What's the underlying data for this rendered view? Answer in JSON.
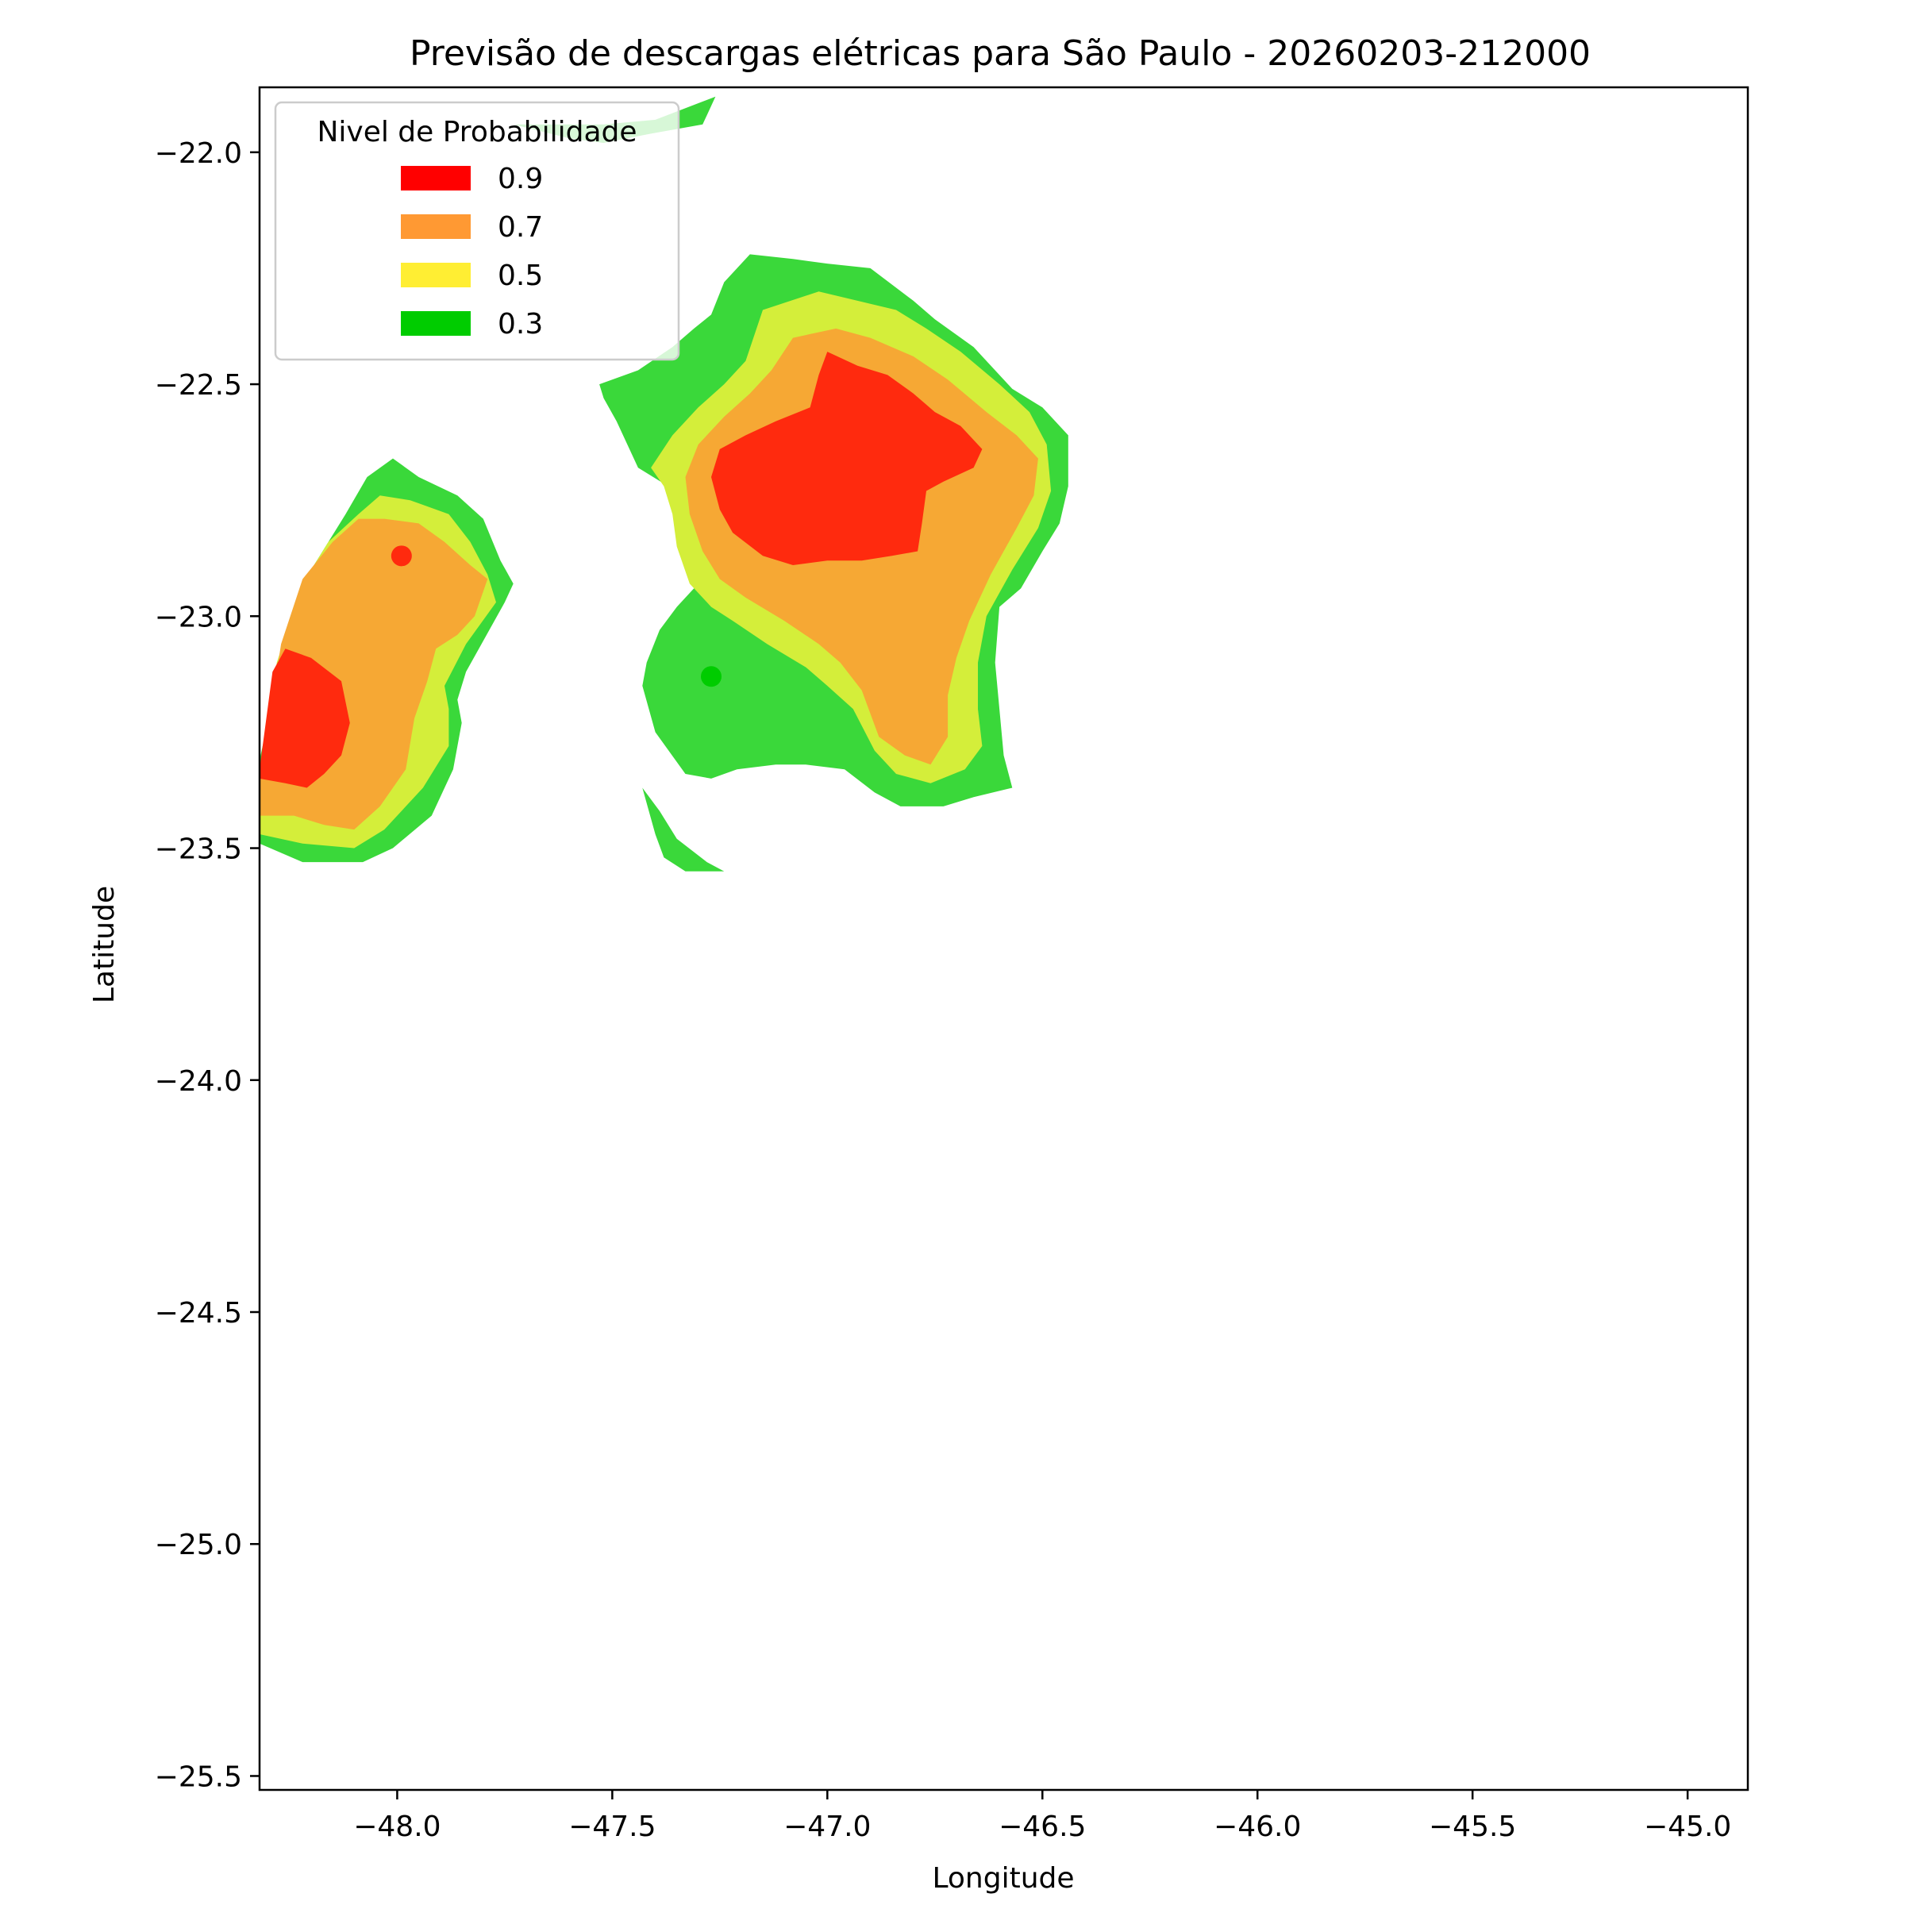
{
  "chart_data": {
    "type": "contour",
    "title": "Previsão de descargas elétricas para São Paulo - 20260203-212000",
    "xlabel": "Longitude",
    "ylabel": "Latitude",
    "xlim": [
      -48.32,
      -44.86
    ],
    "ylim": [
      -25.53,
      -21.86
    ],
    "x_ticks": [
      -48.0,
      -47.5,
      -47.0,
      -46.5,
      -46.0,
      -45.5,
      -45.0
    ],
    "x_tick_labels": [
      "−48.0",
      "−47.5",
      "−47.0",
      "−46.5",
      "−46.0",
      "−45.5",
      "−45.0"
    ],
    "y_ticks": [
      -22.0,
      -22.5,
      -23.0,
      -23.5,
      -24.0,
      -24.5,
      -25.0,
      -25.5
    ],
    "y_tick_labels": [
      "−22.0",
      "−22.5",
      "−23.0",
      "−23.5",
      "−24.0",
      "−24.5",
      "−25.0",
      "−25.5"
    ],
    "legend": {
      "title": "Nivel de Probabilidade",
      "placement": "upper-left",
      "entries": [
        {
          "label": "0.9",
          "color": "#ff0000"
        },
        {
          "label": "0.7",
          "color": "#ff9933"
        },
        {
          "label": "0.5",
          "color": "#ffee33"
        },
        {
          "label": "0.3",
          "color": "#00cc00"
        }
      ]
    },
    "level_fill_colors": {
      "0.3": "#3ad83a",
      "0.5": "#d4ee3a",
      "0.7": "#f6a834",
      "0.9": "#ff2a0e"
    },
    "regions": [
      {
        "level": 0.3,
        "polygon": [
          [
            -47.73,
            -21.94
          ],
          [
            -47.52,
            -21.94
          ],
          [
            -47.4,
            -21.93
          ],
          [
            -47.26,
            -21.88
          ],
          [
            -47.29,
            -21.94
          ],
          [
            -47.41,
            -21.96
          ],
          [
            -47.52,
            -21.98
          ],
          [
            -47.6,
            -21.97
          ]
        ]
      },
      {
        "level": 0.3,
        "polygon": [
          [
            -48.32,
            -23.31
          ],
          [
            -48.27,
            -23.1
          ],
          [
            -48.2,
            -22.9
          ],
          [
            -48.12,
            -22.78
          ],
          [
            -48.07,
            -22.7
          ],
          [
            -48.01,
            -22.66
          ],
          [
            -47.95,
            -22.7
          ],
          [
            -47.86,
            -22.74
          ],
          [
            -47.8,
            -22.79
          ],
          [
            -47.76,
            -22.88
          ],
          [
            -47.73,
            -22.93
          ],
          [
            -47.75,
            -22.97
          ],
          [
            -47.84,
            -23.12
          ],
          [
            -47.86,
            -23.18
          ],
          [
            -47.85,
            -23.23
          ],
          [
            -47.87,
            -23.33
          ],
          [
            -47.92,
            -23.43
          ],
          [
            -48.01,
            -23.5
          ],
          [
            -48.08,
            -23.53
          ],
          [
            -48.22,
            -23.53
          ],
          [
            -48.32,
            -23.49
          ]
        ]
      },
      {
        "level": 0.5,
        "polygon": [
          [
            -48.32,
            -23.43
          ],
          [
            -48.28,
            -23.1
          ],
          [
            -48.22,
            -22.93
          ],
          [
            -48.16,
            -22.84
          ],
          [
            -48.09,
            -22.78
          ],
          [
            -48.04,
            -22.74
          ],
          [
            -47.97,
            -22.75
          ],
          [
            -47.88,
            -22.78
          ],
          [
            -47.83,
            -22.84
          ],
          [
            -47.79,
            -22.91
          ],
          [
            -47.77,
            -22.97
          ],
          [
            -47.84,
            -23.06
          ],
          [
            -47.89,
            -23.15
          ],
          [
            -47.88,
            -23.2
          ],
          [
            -47.88,
            -23.28
          ],
          [
            -47.94,
            -23.37
          ],
          [
            -48.03,
            -23.46
          ],
          [
            -48.1,
            -23.5
          ],
          [
            -48.22,
            -23.49
          ],
          [
            -48.32,
            -23.47
          ]
        ]
      },
      {
        "level": 0.7,
        "polygon": [
          [
            -48.32,
            -23.36
          ],
          [
            -48.27,
            -23.06
          ],
          [
            -48.22,
            -22.92
          ],
          [
            -48.15,
            -22.84
          ],
          [
            -48.09,
            -22.79
          ],
          [
            -48.03,
            -22.79
          ],
          [
            -47.95,
            -22.8
          ],
          [
            -47.89,
            -22.84
          ],
          [
            -47.83,
            -22.89
          ],
          [
            -47.79,
            -22.92
          ],
          [
            -47.82,
            -23.0
          ],
          [
            -47.86,
            -23.04
          ],
          [
            -47.91,
            -23.07
          ],
          [
            -47.93,
            -23.14
          ],
          [
            -47.96,
            -23.22
          ],
          [
            -47.98,
            -23.33
          ],
          [
            -48.04,
            -23.41
          ],
          [
            -48.1,
            -23.46
          ],
          [
            -48.17,
            -23.45
          ],
          [
            -48.24,
            -23.43
          ],
          [
            -48.32,
            -23.43
          ]
        ]
      },
      {
        "level": 0.9,
        "polygon": [
          [
            -48.32,
            -23.33
          ],
          [
            -48.29,
            -23.12
          ],
          [
            -48.26,
            -23.07
          ],
          [
            -48.2,
            -23.09
          ],
          [
            -48.13,
            -23.14
          ],
          [
            -48.11,
            -23.23
          ],
          [
            -48.13,
            -23.3
          ],
          [
            -48.17,
            -23.34
          ],
          [
            -48.21,
            -23.37
          ],
          [
            -48.26,
            -23.36
          ],
          [
            -48.32,
            -23.35
          ]
        ]
      },
      {
        "level": 0.3,
        "polygon": [
          [
            -47.24,
            -22.28
          ],
          [
            -47.18,
            -22.22
          ],
          [
            -47.08,
            -22.23
          ],
          [
            -47.0,
            -22.24
          ],
          [
            -46.9,
            -22.25
          ],
          [
            -46.8,
            -22.32
          ],
          [
            -46.75,
            -22.36
          ],
          [
            -46.66,
            -22.42
          ],
          [
            -46.57,
            -22.51
          ],
          [
            -46.5,
            -22.55
          ],
          [
            -46.44,
            -22.61
          ],
          [
            -46.44,
            -22.72
          ],
          [
            -46.46,
            -22.8
          ],
          [
            -46.5,
            -22.86
          ],
          [
            -46.55,
            -22.94
          ],
          [
            -46.6,
            -22.98
          ],
          [
            -46.61,
            -23.1
          ],
          [
            -46.59,
            -23.3
          ],
          [
            -46.57,
            -23.37
          ],
          [
            -46.66,
            -23.39
          ],
          [
            -46.73,
            -23.41
          ],
          [
            -46.83,
            -23.41
          ],
          [
            -46.89,
            -23.38
          ],
          [
            -46.96,
            -23.33
          ],
          [
            -47.05,
            -23.32
          ],
          [
            -47.12,
            -23.32
          ],
          [
            -47.21,
            -23.33
          ],
          [
            -47.27,
            -23.35
          ],
          [
            -47.33,
            -23.34
          ],
          [
            -47.4,
            -23.25
          ],
          [
            -47.43,
            -23.15
          ],
          [
            -47.42,
            -23.1
          ],
          [
            -47.39,
            -23.03
          ],
          [
            -47.35,
            -22.98
          ],
          [
            -47.3,
            -22.93
          ],
          [
            -47.27,
            -22.88
          ],
          [
            -47.28,
            -22.8
          ],
          [
            -47.31,
            -22.75
          ],
          [
            -47.37,
            -22.72
          ],
          [
            -47.44,
            -22.68
          ],
          [
            -47.49,
            -22.58
          ],
          [
            -47.52,
            -22.53
          ],
          [
            -47.53,
            -22.5
          ],
          [
            -47.44,
            -22.47
          ],
          [
            -47.36,
            -22.42
          ],
          [
            -47.31,
            -22.38
          ],
          [
            -47.27,
            -22.35
          ]
        ]
      },
      {
        "level": 0.3,
        "polygon": [
          [
            -47.43,
            -23.37
          ],
          [
            -47.39,
            -23.42
          ],
          [
            -47.35,
            -23.48
          ],
          [
            -47.28,
            -23.53
          ],
          [
            -47.24,
            -23.55
          ],
          [
            -47.33,
            -23.55
          ],
          [
            -47.38,
            -23.52
          ],
          [
            -47.4,
            -23.47
          ]
        ]
      },
      {
        "level": 0.5,
        "polygon": [
          [
            -47.15,
            -22.34
          ],
          [
            -47.02,
            -22.3
          ],
          [
            -46.93,
            -22.32
          ],
          [
            -46.84,
            -22.34
          ],
          [
            -46.77,
            -22.38
          ],
          [
            -46.69,
            -22.43
          ],
          [
            -46.6,
            -22.5
          ],
          [
            -46.53,
            -22.56
          ],
          [
            -46.49,
            -22.63
          ],
          [
            -46.48,
            -22.73
          ],
          [
            -46.51,
            -22.81
          ],
          [
            -46.57,
            -22.9
          ],
          [
            -46.63,
            -23.0
          ],
          [
            -46.65,
            -23.1
          ],
          [
            -46.65,
            -23.2
          ],
          [
            -46.64,
            -23.28
          ],
          [
            -46.68,
            -23.33
          ],
          [
            -46.76,
            -23.36
          ],
          [
            -46.84,
            -23.34
          ],
          [
            -46.89,
            -23.29
          ],
          [
            -46.94,
            -23.2
          ],
          [
            -47.0,
            -23.15
          ],
          [
            -47.05,
            -23.11
          ],
          [
            -47.14,
            -23.06
          ],
          [
            -47.22,
            -23.01
          ],
          [
            -47.27,
            -22.98
          ],
          [
            -47.32,
            -22.93
          ],
          [
            -47.35,
            -22.85
          ],
          [
            -47.36,
            -22.78
          ],
          [
            -47.38,
            -22.72
          ],
          [
            -47.41,
            -22.68
          ],
          [
            -47.36,
            -22.61
          ],
          [
            -47.3,
            -22.55
          ],
          [
            -47.24,
            -22.5
          ],
          [
            -47.19,
            -22.45
          ]
        ]
      },
      {
        "level": 0.7,
        "polygon": [
          [
            -47.08,
            -22.4
          ],
          [
            -46.98,
            -22.38
          ],
          [
            -46.9,
            -22.4
          ],
          [
            -46.8,
            -22.44
          ],
          [
            -46.72,
            -22.49
          ],
          [
            -46.63,
            -22.56
          ],
          [
            -46.56,
            -22.61
          ],
          [
            -46.51,
            -22.66
          ],
          [
            -46.52,
            -22.74
          ],
          [
            -46.56,
            -22.81
          ],
          [
            -46.62,
            -22.91
          ],
          [
            -46.67,
            -23.01
          ],
          [
            -46.7,
            -23.09
          ],
          [
            -46.72,
            -23.17
          ],
          [
            -46.72,
            -23.26
          ],
          [
            -46.76,
            -23.32
          ],
          [
            -46.82,
            -23.3
          ],
          [
            -46.88,
            -23.26
          ],
          [
            -46.92,
            -23.16
          ],
          [
            -46.97,
            -23.1
          ],
          [
            -47.02,
            -23.06
          ],
          [
            -47.1,
            -23.01
          ],
          [
            -47.19,
            -22.96
          ],
          [
            -47.25,
            -22.92
          ],
          [
            -47.29,
            -22.86
          ],
          [
            -47.32,
            -22.78
          ],
          [
            -47.33,
            -22.7
          ],
          [
            -47.3,
            -22.63
          ],
          [
            -47.24,
            -22.57
          ],
          [
            -47.18,
            -22.52
          ],
          [
            -47.13,
            -22.47
          ]
        ]
      },
      {
        "level": 0.9,
        "polygon": [
          [
            -47.0,
            -22.43
          ],
          [
            -46.93,
            -22.46
          ],
          [
            -46.86,
            -22.48
          ],
          [
            -46.8,
            -22.52
          ],
          [
            -46.75,
            -22.56
          ],
          [
            -46.69,
            -22.59
          ],
          [
            -46.64,
            -22.64
          ],
          [
            -46.66,
            -22.68
          ],
          [
            -46.73,
            -22.71
          ],
          [
            -46.77,
            -22.73
          ],
          [
            -46.78,
            -22.8
          ],
          [
            -46.79,
            -22.86
          ],
          [
            -46.85,
            -22.87
          ],
          [
            -46.92,
            -22.88
          ],
          [
            -47.0,
            -22.88
          ],
          [
            -47.08,
            -22.89
          ],
          [
            -47.15,
            -22.87
          ],
          [
            -47.22,
            -22.82
          ],
          [
            -47.25,
            -22.77
          ],
          [
            -47.27,
            -22.7
          ],
          [
            -47.25,
            -22.64
          ],
          [
            -47.19,
            -22.61
          ],
          [
            -47.12,
            -22.58
          ],
          [
            -47.04,
            -22.55
          ],
          [
            -47.02,
            -22.48
          ]
        ]
      }
    ],
    "markers": [
      {
        "x": -47.99,
        "y": -22.87,
        "color": "#ff2a0e",
        "level": 0.9
      },
      {
        "x": -47.27,
        "y": -23.13,
        "color": "#00cc00",
        "level": 0.3
      }
    ]
  }
}
